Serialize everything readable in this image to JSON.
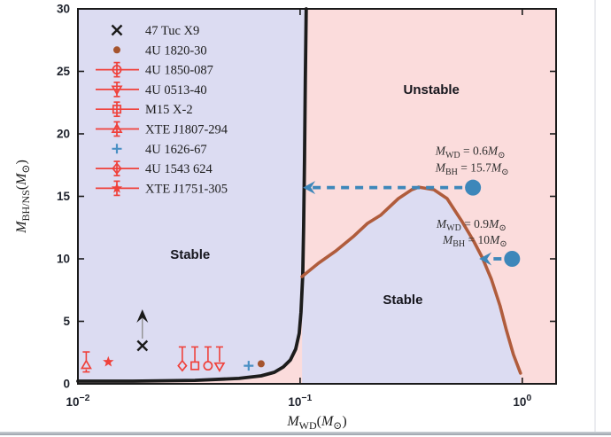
{
  "window": {
    "background": "#ffffff",
    "bottom_edge_color": "#9aa1a9",
    "right_edge_color": "#ebecf0"
  },
  "plot": {
    "stable_fill": "#dcdcf2",
    "unstable_fill": "#fbdcdc",
    "frame_color": "#1a1a1a",
    "tick_label_color": "#20242e",
    "region_labels": [
      {
        "text": "Stable",
        "M": 0.032,
        "m": 10.0
      },
      {
        "text": "Unstable",
        "M": 0.39,
        "m": 23.2
      },
      {
        "text": "Stable",
        "M": 0.29,
        "m": 6.4
      }
    ]
  },
  "chart_data": {
    "type": "line",
    "x_axis": {
      "scale": "log",
      "min": 0.01,
      "max": 1.42,
      "ticks": [
        {
          "value": 0.01,
          "base": "10",
          "exp": "−2"
        },
        {
          "value": 0.1,
          "base": "10",
          "exp": "−1"
        },
        {
          "value": 1.0,
          "base": "10",
          "exp": "0"
        }
      ],
      "label_parts": [
        [
          "i",
          "M"
        ],
        [
          "sub",
          "WD"
        ],
        [
          "n",
          "("
        ],
        [
          "i",
          "M"
        ],
        [
          "sub",
          "⊙"
        ],
        [
          "n",
          ")"
        ]
      ]
    },
    "y_axis": {
      "min": 0,
      "max": 30,
      "ticks": [
        {
          "value": 0,
          "label": "0"
        },
        {
          "value": 5,
          "label": "5"
        },
        {
          "value": 10,
          "label": "10"
        },
        {
          "value": 15,
          "label": "15"
        },
        {
          "value": 20,
          "label": "20"
        },
        {
          "value": 25,
          "label": "25"
        },
        {
          "value": 30,
          "label": "30"
        }
      ],
      "label_parts": [
        [
          "i",
          "M"
        ],
        [
          "sub",
          "BH/NS"
        ],
        [
          "n",
          "("
        ],
        [
          "i",
          "M"
        ],
        [
          "sub",
          "⊙"
        ],
        [
          "n",
          ")"
        ]
      ]
    },
    "series": [
      {
        "name": "ns-stability-boundary",
        "color": "#1c1c1c",
        "width": 3.8,
        "points": [
          [
            0.01,
            0.21
          ],
          [
            0.0177,
            0.21
          ],
          [
            0.0336,
            0.28
          ],
          [
            0.0531,
            0.43
          ],
          [
            0.0668,
            0.64
          ],
          [
            0.0766,
            0.92
          ],
          [
            0.084,
            1.35
          ],
          [
            0.0904,
            1.91
          ],
          [
            0.0955,
            2.77
          ],
          [
            0.0991,
            4.04
          ],
          [
            0.1009,
            5.74
          ],
          [
            0.1028,
            8.72
          ],
          [
            0.1037,
            12.62
          ],
          [
            0.1047,
            17.94
          ],
          [
            0.1056,
            24.33
          ],
          [
            0.1065,
            30.0
          ]
        ]
      },
      {
        "name": "bh-stability-boundary",
        "color": "#b05c3c",
        "width": 3.6,
        "points": [
          [
            0.102,
            8.58
          ],
          [
            0.121,
            9.65
          ],
          [
            0.145,
            10.64
          ],
          [
            0.175,
            11.84
          ],
          [
            0.201,
            12.84
          ],
          [
            0.23,
            13.48
          ],
          [
            0.277,
            14.82
          ],
          [
            0.318,
            15.53
          ],
          [
            0.342,
            15.74
          ],
          [
            0.4,
            15.53
          ],
          [
            0.459,
            14.82
          ],
          [
            0.536,
            12.98
          ],
          [
            0.604,
            11.42
          ],
          [
            0.662,
            10.07
          ],
          [
            0.726,
            8.37
          ],
          [
            0.794,
            6.24
          ],
          [
            0.847,
            4.33
          ],
          [
            0.912,
            2.34
          ],
          [
            0.982,
            0.85
          ]
        ]
      }
    ],
    "sources": [
      {
        "name": "47 Tuc X9",
        "marker": "x",
        "color": "#1a1a1a",
        "M": 0.0195,
        "m": 3.05,
        "limit": "lower"
      },
      {
        "name": "4U 1820-30",
        "marker": "dot",
        "color": "#a5542e",
        "M": 0.0668,
        "m": 1.6
      },
      {
        "name": "4U 1850-087",
        "marker": "circle",
        "color": "#ef413b",
        "M": 0.0385,
        "m": 1.45,
        "err_hi": 2.95
      },
      {
        "name": "4U 0513-40",
        "marker": "tridown",
        "color": "#ef413b",
        "M": 0.0434,
        "m": 1.4,
        "err_hi": 2.95
      },
      {
        "name": "M15 X-2",
        "marker": "square",
        "color": "#ef413b",
        "M": 0.0336,
        "m": 1.45,
        "err_hi": 2.95
      },
      {
        "name": "XTE J1807-294",
        "marker": "triup",
        "color": "#ef413b",
        "M": 0.0109,
        "m": 1.5,
        "err_lo": 0.95,
        "err_hi": 2.55
      },
      {
        "name": "4U 1626-67",
        "marker": "plus",
        "color": "#4a90c4",
        "M": 0.0587,
        "m": 1.45
      },
      {
        "name": "4U 1543 624",
        "marker": "diamond",
        "color": "#ef413b",
        "M": 0.0295,
        "m": 1.45,
        "err_hi": 2.95
      },
      {
        "name": "XTE J1751-305",
        "marker": "star",
        "color": "#ef413b",
        "M": 0.0137,
        "m": 1.75
      }
    ],
    "bh_tracks": [
      {
        "M": 0.6,
        "m": 15.7,
        "arrow_to_M": 0.103,
        "color": "#3d87ba",
        "label_lines": [
          [
            [
              "i",
              "M"
            ],
            [
              "sub",
              "WD"
            ],
            [
              "n",
              " = 0.6"
            ],
            [
              "i",
              "M"
            ],
            [
              "sub",
              "⊙"
            ]
          ],
          [
            [
              "i",
              "M"
            ],
            [
              "sub",
              "BH"
            ],
            [
              "n",
              " = 15.7"
            ],
            [
              "i",
              "M"
            ],
            [
              "sub",
              "⊙"
            ]
          ]
        ]
      },
      {
        "M": 0.9,
        "m": 10.0,
        "arrow_to_M": 0.64,
        "color": "#3d87ba",
        "label_lines": [
          [
            [
              "i",
              "M"
            ],
            [
              "sub",
              "WD"
            ],
            [
              "n",
              " = 0.9"
            ],
            [
              "i",
              "M"
            ],
            [
              "sub",
              "⊙"
            ]
          ],
          [
            [
              "i",
              "M"
            ],
            [
              "sub",
              "BH"
            ],
            [
              "n",
              " = 10"
            ],
            [
              "i",
              "M"
            ],
            [
              "sub",
              "⊙"
            ]
          ]
        ]
      }
    ]
  },
  "legend": {
    "items": [
      {
        "label": "47 Tuc X9",
        "marker": "x",
        "color": "#1a1a1a",
        "errline": false
      },
      {
        "label": "4U 1820-30",
        "marker": "dot",
        "color": "#a5542e",
        "errline": false
      },
      {
        "label": "4U 1850-087",
        "marker": "circle",
        "color": "#ef413b",
        "errline": true
      },
      {
        "label": "4U 0513-40",
        "marker": "tridown",
        "color": "#ef413b",
        "errline": true
      },
      {
        "label": "M15 X-2",
        "marker": "square",
        "color": "#ef413b",
        "errline": true
      },
      {
        "label": "XTE J1807-294",
        "marker": "triup",
        "color": "#ef413b",
        "errline": true
      },
      {
        "label": "4U 1626-67",
        "marker": "plus",
        "color": "#4a90c4",
        "errline": false
      },
      {
        "label": "4U 1543 624",
        "marker": "diamond",
        "color": "#ef413b",
        "errline": true
      },
      {
        "label": "XTE J1751-305",
        "marker": "star",
        "color": "#ef413b",
        "errline": true
      }
    ]
  }
}
